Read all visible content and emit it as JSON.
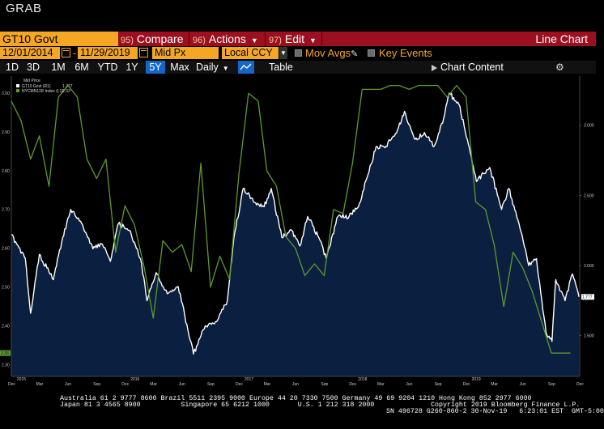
{
  "window": {
    "title": "GRAB"
  },
  "toolbar": {
    "ticker": "GT10 Govt",
    "compare": {
      "num": "95)",
      "label": "Compare"
    },
    "actions": {
      "num": "96)",
      "label": "Actions"
    },
    "edit": {
      "num": "97)",
      "label": "Edit"
    },
    "view_label": "Line Chart"
  },
  "settings": {
    "start_date": "12/01/2014",
    "end_date": "11/29/2019",
    "price_field": "Mid Px",
    "currency": "Local CCY",
    "mov_avgs_label": "Mov Avgs",
    "key_events_label": "Key Events"
  },
  "range_bar": {
    "ranges": [
      "1D",
      "3D",
      "1M",
      "6M",
      "YTD",
      "1Y",
      "5Y",
      "Max"
    ],
    "active_range": "5Y",
    "frequency": "Daily",
    "table_label": "Table",
    "chart_content_label": "Chart Content"
  },
  "colors": {
    "accent_orange": "#f5a623",
    "toolbar_red": "#9b0f1f",
    "active_blue": "#1466c8",
    "area_fill": "#0b2040",
    "series_green": "#5d9a2c",
    "series_white": "#ffffff"
  },
  "chart_data": {
    "type": "line",
    "legend": {
      "header": "Mid Price",
      "placement": "top-left"
    },
    "series": [
      {
        "name": "GT10 Govt (R1)",
        "last_value": "1.777",
        "axis": "right",
        "style": "area-white-line",
        "x": [
          "2014-12-01",
          "2015-01-15",
          "2015-02-01",
          "2015-03-01",
          "2015-04-15",
          "2015-05-15",
          "2015-06-10",
          "2015-07-15",
          "2015-08-20",
          "2015-09-20",
          "2015-10-15",
          "2015-11-10",
          "2015-12-15",
          "2016-01-20",
          "2016-02-10",
          "2016-03-10",
          "2016-04-15",
          "2016-05-20",
          "2016-07-08",
          "2016-08-15",
          "2016-09-20",
          "2016-10-25",
          "2016-11-15",
          "2016-12-15",
          "2017-01-20",
          "2017-02-20",
          "2017-03-15",
          "2017-04-18",
          "2017-05-20",
          "2017-06-15",
          "2017-07-10",
          "2017-08-15",
          "2017-09-08",
          "2017-10-15",
          "2017-11-20",
          "2017-12-20",
          "2018-01-20",
          "2018-02-15",
          "2018-03-15",
          "2018-04-25",
          "2018-05-17",
          "2018-06-20",
          "2018-07-20",
          "2018-08-20",
          "2018-09-20",
          "2018-10-08",
          "2018-11-08",
          "2018-12-05",
          "2019-01-03",
          "2019-02-15",
          "2019-03-25",
          "2019-04-17",
          "2019-05-20",
          "2019-06-20",
          "2019-07-15",
          "2019-08-15",
          "2019-09-03",
          "2019-09-15",
          "2019-10-15",
          "2019-11-08",
          "2019-11-29"
        ],
        "values": [
          2.22,
          2.05,
          1.66,
          2.08,
          1.9,
          2.2,
          2.4,
          2.3,
          2.12,
          2.15,
          2.03,
          2.3,
          2.25,
          2.05,
          1.75,
          1.95,
          1.8,
          1.85,
          1.37,
          1.57,
          1.6,
          1.75,
          2.2,
          2.55,
          2.45,
          2.42,
          2.55,
          2.2,
          2.25,
          2.14,
          2.35,
          2.2,
          2.05,
          2.35,
          2.35,
          2.42,
          2.65,
          2.85,
          2.84,
          2.97,
          3.1,
          2.9,
          2.95,
          2.85,
          3.05,
          3.23,
          3.15,
          2.9,
          2.6,
          2.7,
          2.4,
          2.55,
          2.3,
          2.0,
          2.05,
          1.52,
          1.46,
          1.9,
          1.75,
          1.94,
          1.777
        ]
      },
      {
        "name": "NYCMN11R Index (L1)",
        "last_value": "2.33",
        "axis": "left",
        "style": "green-line",
        "x": [
          "2014-12-01",
          "2015-01-01",
          "2015-02-01",
          "2015-03-01",
          "2015-04-01",
          "2015-05-01",
          "2015-06-01",
          "2015-07-01",
          "2015-08-01",
          "2015-09-01",
          "2015-10-01",
          "2015-11-01",
          "2015-12-01",
          "2016-01-01",
          "2016-02-01",
          "2016-03-01",
          "2016-04-01",
          "2016-05-01",
          "2016-06-01",
          "2016-07-01",
          "2016-08-01",
          "2016-09-01",
          "2016-10-01",
          "2016-11-01",
          "2016-12-01",
          "2017-01-01",
          "2017-02-01",
          "2017-03-01",
          "2017-04-01",
          "2017-05-01",
          "2017-06-01",
          "2017-07-01",
          "2017-08-01",
          "2017-09-01",
          "2017-10-01",
          "2017-11-01",
          "2017-12-01",
          "2018-01-01",
          "2018-02-01",
          "2018-03-01",
          "2018-04-01",
          "2018-05-01",
          "2018-06-01",
          "2018-07-01",
          "2018-08-01",
          "2018-09-01",
          "2018-10-01",
          "2018-11-01",
          "2018-12-01",
          "2019-01-01",
          "2019-02-01",
          "2019-03-01",
          "2019-04-01",
          "2019-05-01",
          "2019-06-01",
          "2019-07-01",
          "2019-08-01",
          "2019-09-01",
          "2019-10-01",
          "2019-11-01"
        ],
        "values": [
          2.98,
          2.93,
          2.83,
          2.89,
          2.76,
          2.99,
          3.02,
          2.99,
          2.83,
          2.78,
          2.83,
          2.59,
          2.71,
          2.66,
          2.55,
          2.42,
          2.62,
          2.59,
          2.61,
          2.54,
          2.82,
          2.5,
          2.58,
          2.52,
          2.79,
          3.0,
          2.98,
          2.8,
          2.76,
          2.63,
          2.6,
          2.53,
          2.56,
          2.53,
          2.7,
          2.69,
          2.82,
          3.01,
          3.01,
          3.01,
          3.02,
          3.02,
          3.01,
          3.02,
          3.02,
          3.02,
          2.99,
          3.02,
          2.99,
          2.72,
          2.7,
          2.61,
          2.45,
          2.59,
          2.55,
          2.49,
          2.41,
          2.33,
          2.33,
          2.33
        ]
      }
    ],
    "left_axis": {
      "ticks": [
        "3.00",
        "2.90",
        "2.80",
        "2.70",
        "2.60",
        "2.50",
        "2.40",
        "2.30"
      ],
      "ylim": [
        2.27,
        3.04
      ],
      "last_value_label": "2.33"
    },
    "right_axis": {
      "ticks": [
        "3.000",
        "2.500",
        "2.000",
        "1.500"
      ],
      "ylim": [
        1.21,
        3.34
      ],
      "last_value_label": "1.777"
    },
    "x_ticks": [
      "Dec",
      "Mar",
      "Jun",
      "Sep",
      "Dec",
      "Mar",
      "Jun",
      "Sep",
      "Dec",
      "Mar",
      "Jun",
      "Sep",
      "Dec",
      "Mar",
      "Jun",
      "Sep",
      "Dec",
      "Mar",
      "Jun",
      "Sep",
      "Dec"
    ],
    "x_tick_dates": [
      "2014-12-01",
      "2015-03-01",
      "2015-06-01",
      "2015-09-01",
      "2015-12-01",
      "2016-03-01",
      "2016-06-01",
      "2016-09-01",
      "2016-12-01",
      "2017-03-01",
      "2017-06-01",
      "2017-09-01",
      "2017-12-01",
      "2018-03-01",
      "2018-06-01",
      "2018-09-01",
      "2018-12-01",
      "2019-03-01",
      "2019-06-01",
      "2019-09-01",
      "2019-12-01"
    ],
    "year_labels": [
      "2015",
      "2016",
      "2017",
      "2018",
      "2019"
    ],
    "year_label_dates": [
      "2015-01-01",
      "2016-01-01",
      "2017-01-01",
      "2018-01-01",
      "2019-01-01"
    ],
    "xlim": [
      "2014-12-01",
      "2019-12-01"
    ],
    "grid": false
  },
  "footer": {
    "line1": "Australia 61 2 9777 8600 Brazil 5511 2395 9000 Europe 44 20 7330 7500 Germany 49 69 9204 1210 Hong Kong 852 2977 6000",
    "line2": "Japan 81 3 4565 8900          Singapore 65 6212 1000       U.S. 1 212 318 2000              Copyright 2019 Bloomberg Finance L.P.",
    "line3": "SN 496728 G260-860-2 30-Nov-19   6:23:01 EST  GMT-5:00"
  }
}
